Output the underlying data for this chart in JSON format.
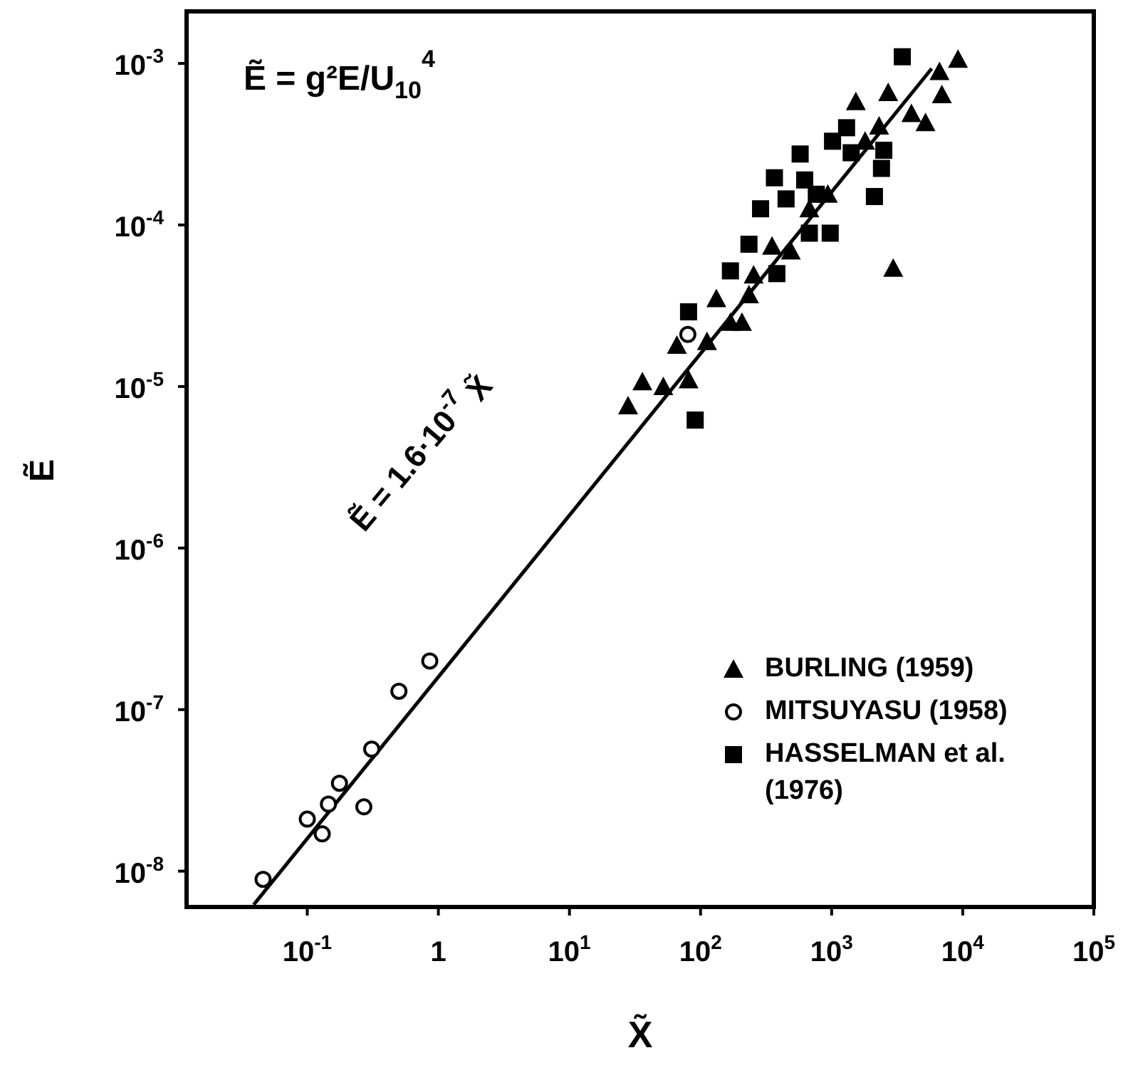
{
  "chart_data": {
    "type": "scatter",
    "xlabel": "X̃",
    "ylabel": "Ẽ",
    "annotations": [
      "Ẽ = g²E/U$_{10}$$^{4}$",
      "Ẽ = 1.6·10$^{-7}$ X̃"
    ],
    "log": "xy",
    "grid": false,
    "legend": "bottom right",
    "xlim": [
      0.012,
      100000
    ],
    "ylim": [
      6e-09,
      0.0021
    ],
    "xticks": [
      {
        "value": 0.1,
        "label": "10$^{-1}$"
      },
      1,
      {
        "value": 10,
        "label": "10$^{1}$"
      },
      {
        "value": 100,
        "label": "10$^{2}$"
      },
      {
        "value": 1000,
        "label": "10$^{3}$"
      },
      {
        "value": 10000,
        "label": "10$^{4}$"
      },
      {
        "value": 100000,
        "label": "10$^{5}$"
      }
    ],
    "yticks": [
      {
        "value": 1e-08,
        "label": "10$^{-8}$"
      },
      {
        "value": 1e-07,
        "label": "10$^{-7}$"
      },
      {
        "value": 1e-06,
        "label": "10$^{-6}$"
      },
      {
        "value": 1e-05,
        "label": "10$^{-5}$"
      },
      {
        "value": 0.0001,
        "label": "10$^{-4}$"
      },
      {
        "value": 0.001,
        "label": "10$^{-3}$"
      }
    ],
    "series": [
      {
        "name": "BURLING (1959)",
        "color": "#000000",
        "marker": "triangle",
        "x": [
          28,
          36,
          52,
          81,
          66,
          112,
          132,
          169,
          207,
          234,
          254,
          351,
          488,
          676,
          935,
          1530,
          1800,
          2300,
          2700,
          2950,
          4060,
          5200,
          6650,
          6930,
          9200
        ],
        "values": [
          7.6e-06,
          1.07e-05,
          1e-05,
          1.1e-05,
          1.8e-05,
          1.9e-05,
          3.5e-05,
          2.5e-05,
          2.5e-05,
          3.7e-05,
          4.9e-05,
          7.4e-05,
          6.9e-05,
          0.000126,
          0.000155,
          0.00058,
          0.00033,
          0.00041,
          0.00066,
          5.4e-05,
          0.00049,
          0.00043,
          0.00089,
          0.00064,
          0.00106
        ]
      },
      {
        "name": "MITSUYASU (1958)",
        "color": "#000000",
        "marker": "circle",
        "x": [
          0.046,
          0.1,
          0.13,
          0.145,
          0.176,
          0.27,
          0.31,
          0.5,
          0.86,
          80
        ],
        "values": [
          8.9e-09,
          2.1e-08,
          1.7e-08,
          2.6e-08,
          3.5e-08,
          2.5e-08,
          5.7e-08,
          1.3e-07,
          2e-07,
          2.1e-05
        ]
      },
      {
        "name": "HASSELMAN et al. (1976)",
        "color": "#000000",
        "marker": "square",
        "x": [
          91,
          81,
          169,
          234,
          287,
          382,
          366,
          449,
          575,
          623,
          676,
          975,
          764,
          1016,
          1300,
          1410,
          2120,
          2400,
          2500,
          3460
        ],
        "values": [
          6.2e-06,
          2.9e-05,
          5.2e-05,
          7.6e-05,
          0.000126,
          5e-05,
          0.000196,
          0.000145,
          0.000275,
          0.00019,
          8.9e-05,
          8.9e-05,
          0.000155,
          0.00033,
          0.0004,
          0.00028,
          0.00015,
          0.000224,
          0.00029,
          0.0011
        ]
      },
      {
        "type": "line",
        "color": "#000000",
        "line_style": "solid",
        "x": [
          0.039,
          5800
        ],
        "values": [
          6.2e-09,
          0.00093
        ]
      }
    ]
  }
}
